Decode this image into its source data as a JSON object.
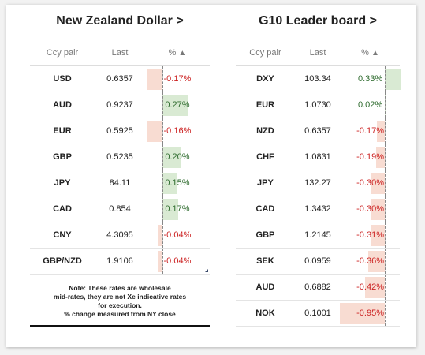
{
  "left": {
    "title": "New Zealand Dollar >",
    "headers": {
      "pair": "Ccy pair",
      "last": "Last",
      "pct": "%"
    },
    "rows": [
      {
        "pair": "USD",
        "last": "0.6357",
        "pct": "-0.17%",
        "value": -0.17
      },
      {
        "pair": "AUD",
        "last": "0.9237",
        "pct": "0.27%",
        "value": 0.27
      },
      {
        "pair": "EUR",
        "last": "0.5925",
        "pct": "-0.16%",
        "value": -0.16
      },
      {
        "pair": "GBP",
        "last": "0.5235",
        "pct": "0.20%",
        "value": 0.2
      },
      {
        "pair": "JPY",
        "last": "84.11",
        "pct": "0.15%",
        "value": 0.15
      },
      {
        "pair": "CAD",
        "last": "0.854",
        "pct": "0.17%",
        "value": 0.17
      },
      {
        "pair": "CNY",
        "last": "4.3095",
        "pct": "-0.04%",
        "value": -0.04
      },
      {
        "pair": "GBP/NZD",
        "last": "1.9106",
        "pct": "-0.04%",
        "value": -0.04
      }
    ],
    "note_lines": [
      "Note: These rates are wholesale",
      "mid-rates, they are not Xe indicative rates",
      "for execution.",
      "% change measured from NY close"
    ]
  },
  "right": {
    "title": "G10 Leader board >",
    "headers": {
      "pair": "Ccy pair",
      "last": "Last",
      "pct": "%"
    },
    "rows": [
      {
        "pair": "DXY",
        "last": "103.34",
        "pct": "0.33%",
        "value": 0.33
      },
      {
        "pair": "EUR",
        "last": "1.0730",
        "pct": "0.02%",
        "value": 0.02
      },
      {
        "pair": "NZD",
        "last": "0.6357",
        "pct": "-0.17%",
        "value": -0.17
      },
      {
        "pair": "CHF",
        "last": "1.0831",
        "pct": "-0.19%",
        "value": -0.19
      },
      {
        "pair": "JPY",
        "last": "132.27",
        "pct": "-0.30%",
        "value": -0.3
      },
      {
        "pair": "CAD",
        "last": "1.3432",
        "pct": "-0.30%",
        "value": -0.3
      },
      {
        "pair": "GBP",
        "last": "1.2145",
        "pct": "-0.31%",
        "value": -0.31
      },
      {
        "pair": "SEK",
        "last": "0.0959",
        "pct": "-0.36%",
        "value": -0.36
      },
      {
        "pair": "AUD",
        "last": "0.6882",
        "pct": "-0.42%",
        "value": -0.42
      },
      {
        "pair": "NOK",
        "last": "0.1001",
        "pct": "-0.95%",
        "value": -0.95
      }
    ]
  },
  "colors": {
    "positive_bar": "#d9ead3",
    "negative_bar": "#f8dcd2",
    "positive_text": "#2e6b2e",
    "negative_text": "#cc2222"
  },
  "icons": {
    "sort": "triangle-up-icon"
  }
}
